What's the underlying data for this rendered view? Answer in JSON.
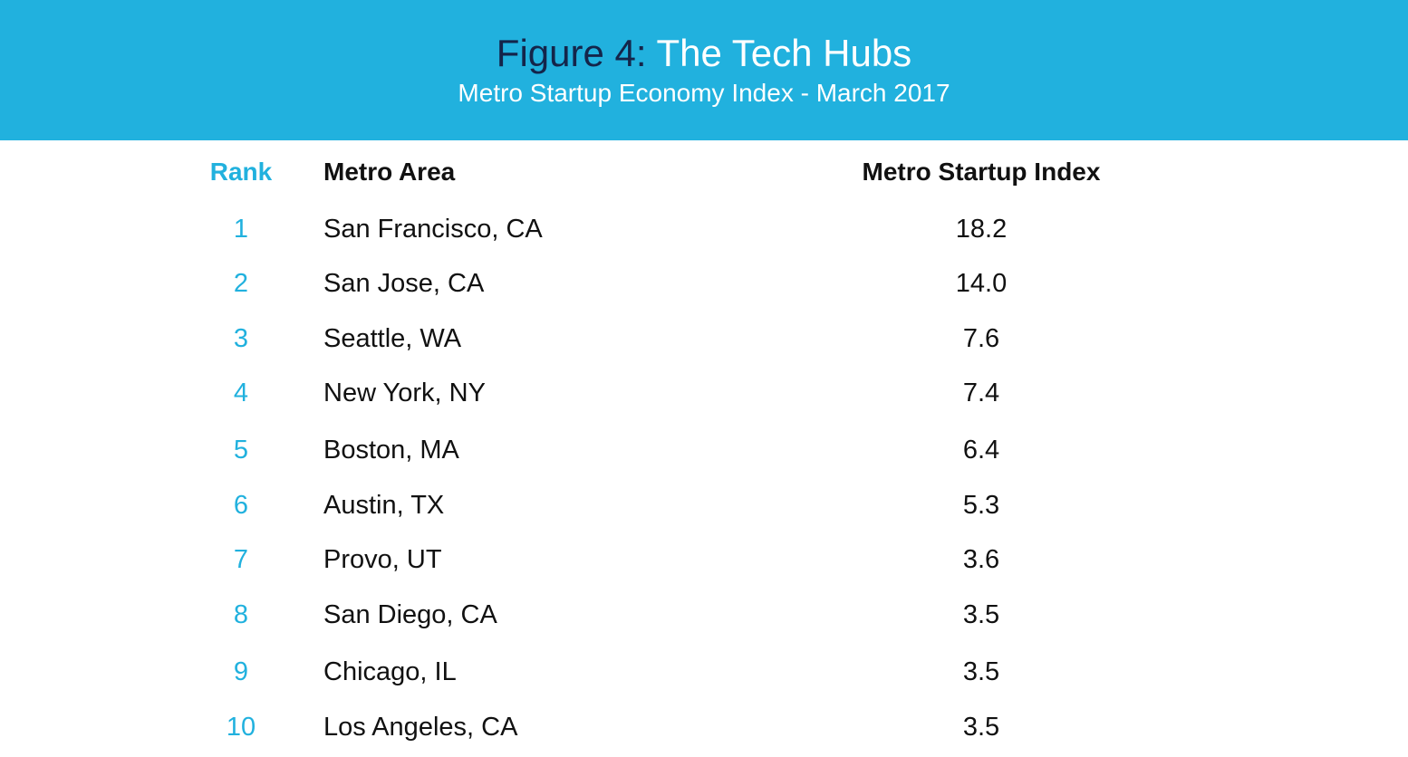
{
  "title": {
    "prefix": "Figure 4:",
    "main": "The Tech Hubs"
  },
  "subtitle": "Metro Startup Economy Index - March 2017",
  "colors": {
    "banner": "#21b1de",
    "title_prefix": "#14254a",
    "rank_text": "#21b1de",
    "body_text": "#111111"
  },
  "columns": {
    "rank": "Rank",
    "area": "Metro Area",
    "index": "Metro Startup Index"
  },
  "chart_data": {
    "type": "table",
    "columns": [
      "Rank",
      "Metro Area",
      "Metro Startup Index"
    ],
    "rows": [
      {
        "rank": "1",
        "area": "San Francisco, CA",
        "index": "18.2"
      },
      {
        "rank": "2",
        "area": "San Jose, CA",
        "index": "14.0"
      },
      {
        "rank": "3",
        "area": "Seattle, WA",
        "index": "7.6"
      },
      {
        "rank": "4",
        "area": "New York, NY",
        "index": "7.4"
      },
      {
        "rank": "5",
        "area": "Boston, MA",
        "index": "6.4"
      },
      {
        "rank": "6",
        "area": "Austin, TX",
        "index": "5.3"
      },
      {
        "rank": "7",
        "area": "Provo, UT",
        "index": "3.6"
      },
      {
        "rank": "8",
        "area": "San Diego, CA",
        "index": "3.5"
      },
      {
        "rank": "9",
        "area": "Chicago, IL",
        "index": "3.5"
      },
      {
        "rank": "10",
        "area": "Los Angeles, CA",
        "index": "3.5"
      }
    ]
  }
}
